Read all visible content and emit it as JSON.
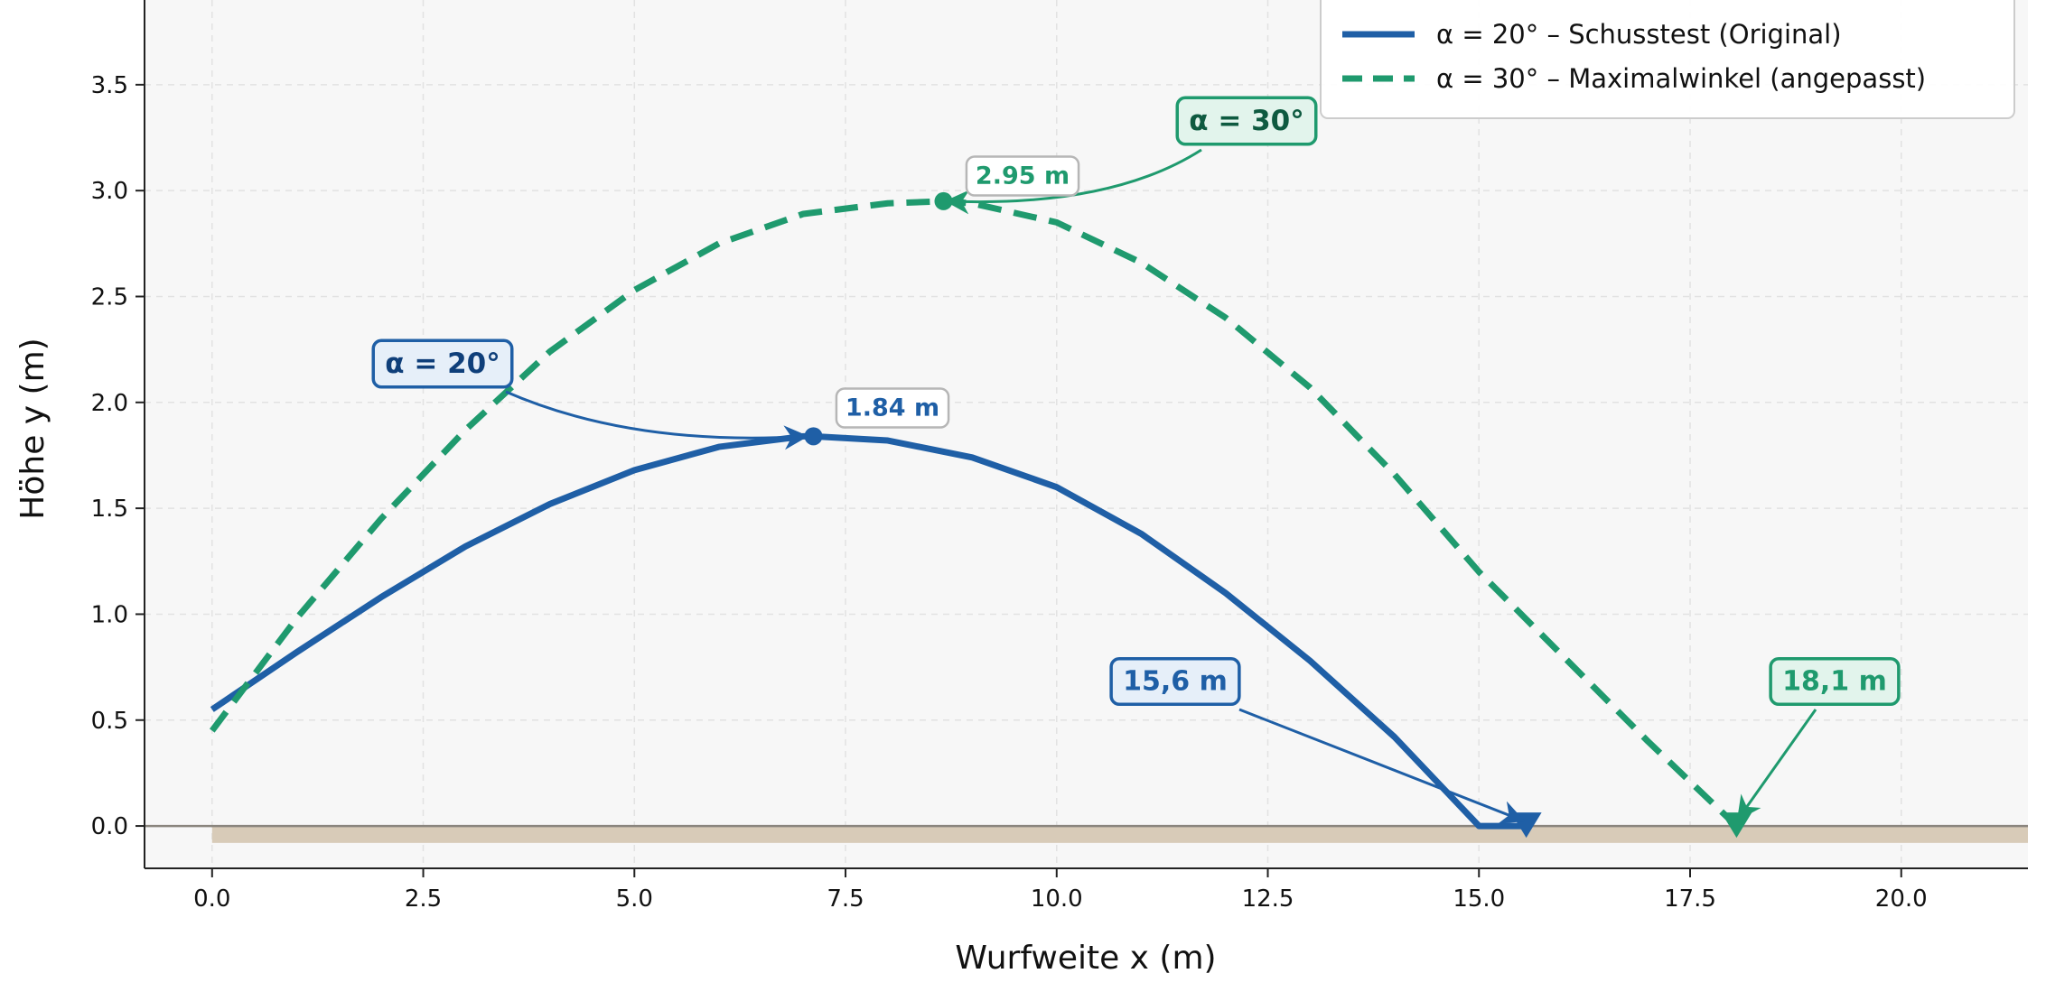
{
  "chart_data": {
    "type": "line",
    "title": "",
    "xlabel": "Wurfweite  x  (m)",
    "ylabel": "Höhe  y  (m)",
    "xlim": [
      -0.8,
      21.5
    ],
    "ylim": [
      -0.2,
      3.9
    ],
    "x_ticks": [
      0.0,
      2.5,
      5.0,
      7.5,
      10.0,
      12.5,
      15.0,
      17.5,
      20.0
    ],
    "x_tick_labels": [
      "0.0",
      "2.5",
      "5.0",
      "7.5",
      "10.0",
      "12.5",
      "15.0",
      "17.5",
      "20.0"
    ],
    "y_ticks": [
      0.0,
      0.5,
      1.0,
      1.5,
      2.0,
      2.5,
      3.0,
      3.5
    ],
    "y_tick_labels": [
      "0.0",
      "0.5",
      "1.0",
      "1.5",
      "2.0",
      "2.5",
      "3.0",
      "3.5"
    ],
    "grid": true,
    "legend_position": "top-right",
    "ground": {
      "y": 0.0,
      "depth": 0.08,
      "color": "#d8cbb8"
    },
    "series": [
      {
        "name": "α = 20°  –  Schusstest (Original)",
        "color": "#1f5fa6",
        "style": "solid",
        "points": [
          [
            0.0,
            0.55
          ],
          [
            1.0,
            0.82
          ],
          [
            2.0,
            1.08
          ],
          [
            3.0,
            1.32
          ],
          [
            4.0,
            1.52
          ],
          [
            5.0,
            1.68
          ],
          [
            6.0,
            1.79
          ],
          [
            7.0,
            1.84
          ],
          [
            7.12,
            1.84
          ],
          [
            8.0,
            1.82
          ],
          [
            9.0,
            1.74
          ],
          [
            10.0,
            1.6
          ],
          [
            11.0,
            1.38
          ],
          [
            12.0,
            1.1
          ],
          [
            13.0,
            0.78
          ],
          [
            14.0,
            0.42
          ],
          [
            15.0,
            0.0
          ],
          [
            15.56,
            0.0
          ]
        ],
        "apex": {
          "x": 7.12,
          "y": 1.84,
          "label": "1.84 m"
        },
        "landing": {
          "x": 15.56,
          "y": 0.0,
          "label": "15,6 m"
        },
        "angle_label": "α = 20°"
      },
      {
        "name": "α = 30°  –  Maximalwinkel (angepasst)",
        "color": "#1f9a6e",
        "style": "dashed",
        "points": [
          [
            0.0,
            0.45
          ],
          [
            1.0,
            0.98
          ],
          [
            2.0,
            1.45
          ],
          [
            3.0,
            1.87
          ],
          [
            4.0,
            2.24
          ],
          [
            5.0,
            2.53
          ],
          [
            6.0,
            2.75
          ],
          [
            7.0,
            2.89
          ],
          [
            8.0,
            2.94
          ],
          [
            8.66,
            2.95
          ],
          [
            9.0,
            2.94
          ],
          [
            10.0,
            2.85
          ],
          [
            11.0,
            2.66
          ],
          [
            12.0,
            2.4
          ],
          [
            13.0,
            2.07
          ],
          [
            14.0,
            1.66
          ],
          [
            15.0,
            1.2
          ],
          [
            16.0,
            0.8
          ],
          [
            17.0,
            0.4
          ],
          [
            18.05,
            0.0
          ]
        ],
        "apex": {
          "x": 8.66,
          "y": 2.95,
          "label": "2.95 m"
        },
        "landing": {
          "x": 18.05,
          "y": 0.0,
          "label": "18,1 m"
        },
        "angle_label": "α = 30°"
      }
    ]
  }
}
